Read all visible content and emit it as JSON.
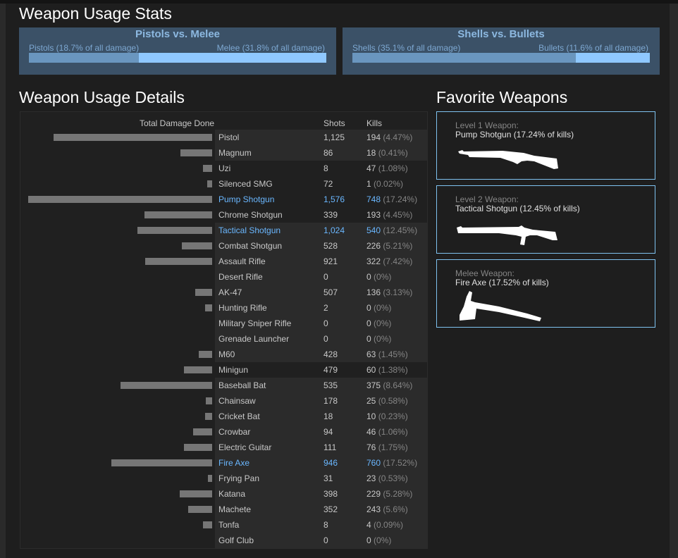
{
  "stats": {
    "title": "Weapon Usage Stats",
    "panels": [
      {
        "title": "Pistols vs. Melee",
        "left_label": "Pistols (18.7% of all damage)",
        "right_label": "Melee (31.8% of all damage)",
        "left_share": 0.37
      },
      {
        "title": "Shells vs. Bullets",
        "left_label": "Shells (35.1% of all damage)",
        "right_label": "Bullets (11.6% of all damage)",
        "left_share": 0.75
      }
    ]
  },
  "details": {
    "title": "Weapon Usage Details",
    "headers": {
      "damage": "Total Damage Done",
      "shots": "Shots",
      "kills": "Kills"
    },
    "bar_color": "#767676",
    "highlight_color": "#6ab7ff",
    "rows": [
      {
        "name": "Pistol",
        "shots": "1,125",
        "kills": "194",
        "pct": "(4.47%)",
        "damage": 225,
        "light": true
      },
      {
        "name": "Magnum",
        "shots": "86",
        "kills": "18",
        "pct": "(0.41%)",
        "damage": 45,
        "light": true
      },
      {
        "name": "Uzi",
        "shots": "8",
        "kills": "47",
        "pct": "(1.08%)",
        "damage": 13
      },
      {
        "name": "Silenced SMG",
        "shots": "72",
        "kills": "1",
        "pct": "(0.02%)",
        "damage": 7
      },
      {
        "name": "Pump Shotgun",
        "shots": "1,576",
        "kills": "748",
        "pct": "(17.24%)",
        "damage": 261,
        "favorite": true
      },
      {
        "name": "Chrome Shotgun",
        "shots": "339",
        "kills": "193",
        "pct": "(4.45%)",
        "damage": 96
      },
      {
        "name": "Tactical Shotgun",
        "shots": "1,024",
        "kills": "540",
        "pct": "(12.45%)",
        "damage": 106,
        "light": true,
        "favorite": true
      },
      {
        "name": "Combat Shotgun",
        "shots": "528",
        "kills": "226",
        "pct": "(5.21%)",
        "damage": 43,
        "light": true
      },
      {
        "name": "Assault Rifle",
        "shots": "921",
        "kills": "322",
        "pct": "(7.42%)",
        "damage": 95,
        "light": true
      },
      {
        "name": "Desert Rifle",
        "shots": "0",
        "kills": "0",
        "pct": "(0%)",
        "damage": 0,
        "light": true
      },
      {
        "name": "AK-47",
        "shots": "507",
        "kills": "136",
        "pct": "(3.13%)",
        "damage": 24,
        "light": true
      },
      {
        "name": "Hunting Rifle",
        "shots": "2",
        "kills": "0",
        "pct": "(0%)",
        "damage": 10,
        "light": true
      },
      {
        "name": "Military Sniper Rifle",
        "shots": "0",
        "kills": "0",
        "pct": "(0%)",
        "damage": 0,
        "light": true
      },
      {
        "name": "Grenade Launcher",
        "shots": "0",
        "kills": "0",
        "pct": "(0%)",
        "damage": 0,
        "light": true
      },
      {
        "name": "M60",
        "shots": "428",
        "kills": "63",
        "pct": "(1.45%)",
        "damage": 19,
        "light": true
      },
      {
        "name": "Minigun",
        "shots": "479",
        "kills": "60",
        "pct": "(1.38%)",
        "damage": 40
      },
      {
        "name": "Baseball Bat",
        "shots": "535",
        "kills": "375",
        "pct": "(8.64%)",
        "damage": 130,
        "light": true
      },
      {
        "name": "Chainsaw",
        "shots": "178",
        "kills": "25",
        "pct": "(0.58%)",
        "damage": 9,
        "light": true
      },
      {
        "name": "Cricket Bat",
        "shots": "18",
        "kills": "10",
        "pct": "(0.23%)",
        "damage": 10,
        "light": true
      },
      {
        "name": "Crowbar",
        "shots": "94",
        "kills": "46",
        "pct": "(1.06%)",
        "damage": 27,
        "light": true
      },
      {
        "name": "Electric Guitar",
        "shots": "111",
        "kills": "76",
        "pct": "(1.75%)",
        "damage": 40,
        "light": true
      },
      {
        "name": "Fire Axe",
        "shots": "946",
        "kills": "760",
        "pct": "(17.52%)",
        "damage": 143,
        "light": true,
        "favorite": true
      },
      {
        "name": "Frying Pan",
        "shots": "31",
        "kills": "23",
        "pct": "(0.53%)",
        "damage": 6,
        "light": true
      },
      {
        "name": "Katana",
        "shots": "398",
        "kills": "229",
        "pct": "(5.28%)",
        "damage": 46,
        "light": true
      },
      {
        "name": "Machete",
        "shots": "352",
        "kills": "243",
        "pct": "(5.6%)",
        "damage": 34,
        "light": true
      },
      {
        "name": "Tonfa",
        "shots": "8",
        "kills": "4",
        "pct": "(0.09%)",
        "damage": 13,
        "light": true
      },
      {
        "name": "Golf Club",
        "shots": "0",
        "kills": "0",
        "pct": "(0%)",
        "damage": 0,
        "light": true
      }
    ]
  },
  "favorites": {
    "title": "Favorite Weapons",
    "items": [
      {
        "level": "Level 1 Weapon:",
        "weapon": "Pump Shotgun (17.24% of kills)",
        "icon": "pump-shotgun-icon"
      },
      {
        "level": "Level 2 Weapon:",
        "weapon": "Tactical Shotgun (12.45% of kills)",
        "icon": "tactical-shotgun-icon"
      },
      {
        "level": "Melee Weapon:",
        "weapon": "Fire Axe (17.52% of kills)",
        "icon": "fire-axe-icon"
      }
    ]
  }
}
